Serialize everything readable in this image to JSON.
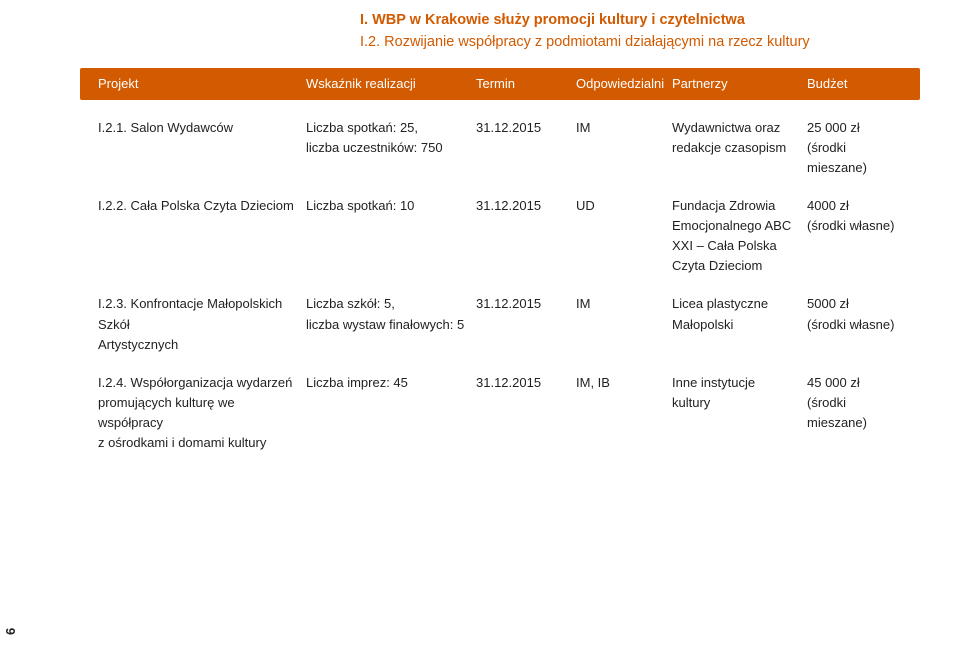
{
  "colors": {
    "accent": "#d25a00",
    "accent_text": "#ffffff",
    "body_text": "#222222",
    "background": "#ffffff"
  },
  "typography": {
    "heading_fontsize_pt": 11,
    "body_fontsize_pt": 10,
    "heading_weight": 700
  },
  "page_number": "6",
  "headings": {
    "h1": "I. WBP w Krakowie służy promocji kultury i czytelnictwa",
    "h2": "I.2. Rozwijanie współpracy z podmiotami działającymi na rzecz kultury"
  },
  "table": {
    "header": {
      "projekt": "Projekt",
      "wskaznik": "Wskaźnik realizacji",
      "termin": "Termin",
      "odp": "Odpowiedzialni",
      "partnerzy": "Partnerzy",
      "budzet": "Budżet"
    },
    "rows": [
      {
        "projekt_l1": "I.2.1. Salon Wydawców",
        "projekt_l2": "",
        "projekt_l3": "",
        "wskaznik_l1": "Liczba spotkań: 25,",
        "wskaznik_l2": "liczba uczestników: 750",
        "termin": "31.12.2015",
        "odp": "IM",
        "partnerzy_l1": "Wydawnictwa oraz",
        "partnerzy_l2": "redakcje czasopism",
        "partnerzy_l3": "",
        "partnerzy_l4": "",
        "budzet_l1": "25 000 zł",
        "budzet_l2": "(środki mieszane)"
      },
      {
        "projekt_l1": "I.2.2. Cała Polska Czyta Dzieciom",
        "projekt_l2": "",
        "projekt_l3": "",
        "wskaznik_l1": "Liczba spotkań: 10",
        "wskaznik_l2": "",
        "termin": "31.12.2015",
        "odp": "UD",
        "partnerzy_l1": "Fundacja Zdrowia",
        "partnerzy_l2": "Emocjonalnego ABC",
        "partnerzy_l3": "XXI – Cała Polska",
        "partnerzy_l4": "Czyta Dzieciom",
        "budzet_l1": "4000 zł",
        "budzet_l2": "(środki własne)"
      },
      {
        "projekt_l1": "I.2.3. Konfrontacje Małopolskich Szkół",
        "projekt_l2": "Artystycznych",
        "projekt_l3": "",
        "wskaznik_l1": "Liczba szkół: 5,",
        "wskaznik_l2": "liczba wystaw finałowych: 5",
        "termin": "31.12.2015",
        "odp": "IM",
        "partnerzy_l1": "Licea plastyczne",
        "partnerzy_l2": "Małopolski",
        "partnerzy_l3": "",
        "partnerzy_l4": "",
        "budzet_l1": "5000 zł",
        "budzet_l2": "(środki własne)"
      },
      {
        "projekt_l1": "I.2.4. Współorganizacja wydarzeń",
        "projekt_l2": "promujących kulturę we współpracy",
        "projekt_l3": "z ośrodkami i domami kultury",
        "wskaznik_l1": "Liczba imprez: 45",
        "wskaznik_l2": "",
        "termin": "31.12.2015",
        "odp": "IM, IB",
        "partnerzy_l1": "Inne instytucje",
        "partnerzy_l2": "kultury",
        "partnerzy_l3": "",
        "partnerzy_l4": "",
        "budzet_l1": "45 000 zł",
        "budzet_l2": "(środki mieszane)"
      }
    ]
  }
}
